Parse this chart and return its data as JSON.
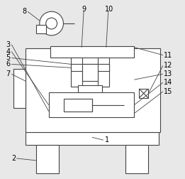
{
  "bg_color": "#e8e8e8",
  "line_color": "#444444",
  "font_size": 7.0,
  "lw": 0.8,
  "fig_w": 2.61,
  "fig_h": 2.52,
  "dpi": 100
}
